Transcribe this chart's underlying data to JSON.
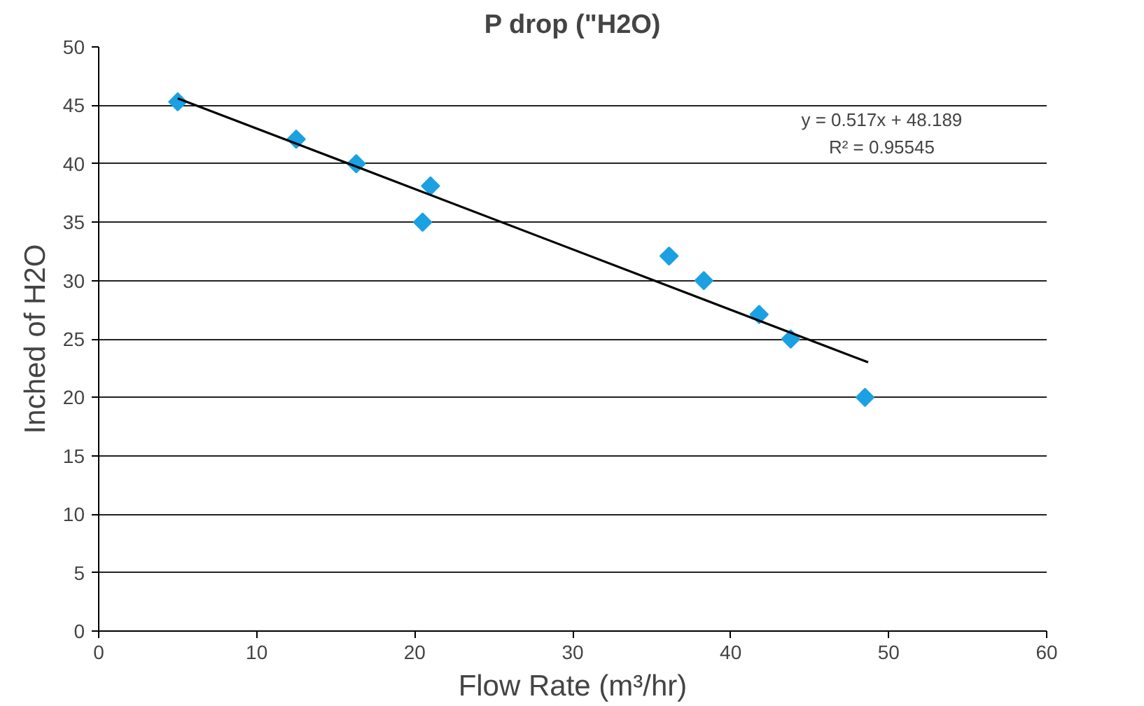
{
  "chart_data": {
    "type": "scatter",
    "title": "P drop (\"H2O)",
    "xlabel": "Flow Rate (m³/hr)",
    "ylabel": "Inched of H2O",
    "xlim": [
      0,
      60
    ],
    "xticks": [
      0,
      10,
      20,
      30,
      40,
      50,
      60
    ],
    "ylim": [
      0,
      50
    ],
    "yticks": [
      0,
      5,
      10,
      15,
      20,
      25,
      30,
      35,
      40,
      45,
      50
    ],
    "grid": "y",
    "series": [
      {
        "color": "#1ba1e2",
        "marker": "diamond",
        "x": [
          5.0,
          12.5,
          16.3,
          21.0,
          20.5,
          36.1,
          38.3,
          41.8,
          43.8,
          48.5
        ],
        "values": [
          45.3,
          42.1,
          40.0,
          38.1,
          35.0,
          32.1,
          30.0,
          27.1,
          25.0,
          20.0
        ]
      },
      {
        "type": "line",
        "marker": "none",
        "color": "#000000",
        "x": [
          5.0,
          48.7
        ],
        "values": [
          45.6,
          23.0
        ]
      }
    ],
    "annotations": [
      "y = 0.517x + 48.189",
      "R² = 0.95545"
    ]
  }
}
